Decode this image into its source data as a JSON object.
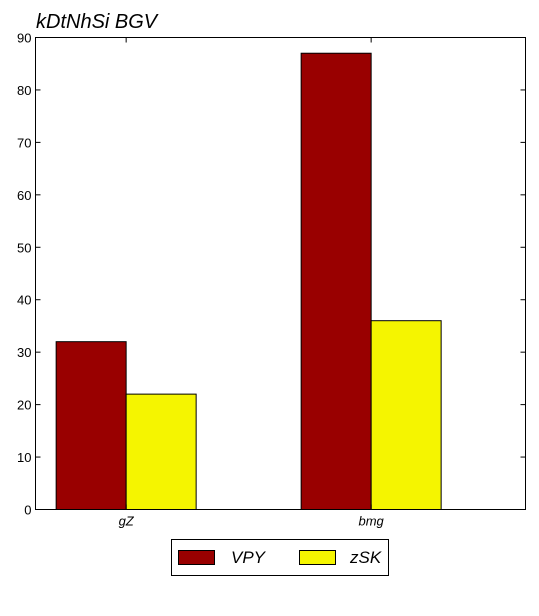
{
  "chart_data": {
    "type": "bar",
    "title": "kDtNhSi BGV",
    "categories": [
      "gZ",
      "bmg"
    ],
    "series": [
      {
        "name": "VPY",
        "values": [
          32,
          87
        ],
        "color": "#990000"
      },
      {
        "name": "zSK",
        "values": [
          22,
          36
        ],
        "color": "#f5f500"
      }
    ],
    "ylim": [
      0,
      90
    ],
    "yticks": [
      0,
      10,
      20,
      30,
      40,
      50,
      60,
      70,
      80,
      90
    ],
    "xlabel": "",
    "ylabel": "",
    "grid": false,
    "legend": "bottom-center"
  }
}
